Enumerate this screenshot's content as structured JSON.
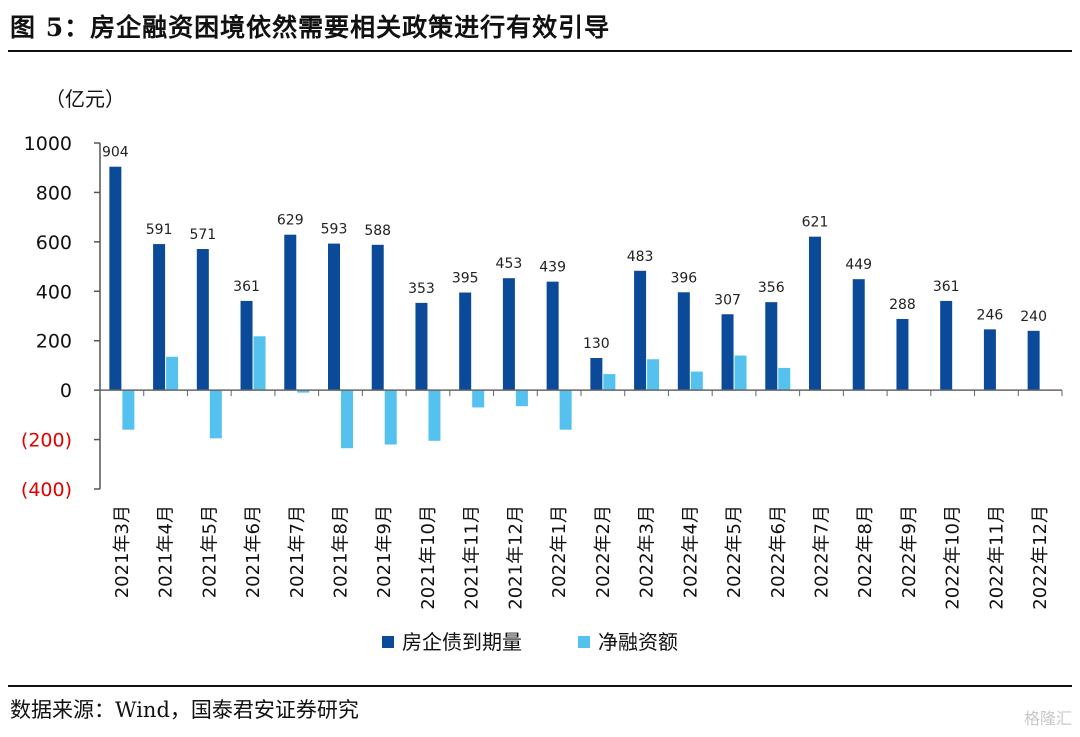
{
  "figure": {
    "title": "图 5：房企融资困境依然需要相关政策进行有效引导",
    "source": "数据来源：Wind，国泰君安证券研究",
    "watermark": "格隆汇"
  },
  "chart_data": {
    "type": "bar",
    "unit": "（亿元）",
    "categories": [
      "2021年3月",
      "2021年4月",
      "2021年5月",
      "2021年6月",
      "2021年7月",
      "2021年8月",
      "2021年9月",
      "2021年10月",
      "2021年11月",
      "2021年12月",
      "2022年1月",
      "2022年2月",
      "2022年3月",
      "2022年4月",
      "2022年5月",
      "2022年6月",
      "2022年7月",
      "2022年8月",
      "2022年9月",
      "2022年10月",
      "2022年11月",
      "2022年12月"
    ],
    "series": [
      {
        "name": "房企债到期量",
        "color": "#0b4a99",
        "values": [
          904,
          591,
          571,
          361,
          629,
          593,
          588,
          353,
          395,
          453,
          439,
          130,
          483,
          396,
          307,
          356,
          621,
          449,
          288,
          361,
          246,
          240
        ],
        "show_labels": true
      },
      {
        "name": "净融资额",
        "color": "#55c1ee",
        "values": [
          -160,
          135,
          -195,
          218,
          -10,
          -235,
          -220,
          -205,
          -70,
          -65,
          -160,
          65,
          125,
          75,
          140,
          90,
          null,
          null,
          null,
          null,
          null,
          null
        ],
        "show_labels": false
      }
    ],
    "ylim": [
      -400,
      1000
    ],
    "yticks": [
      {
        "value": 1000,
        "label": "1000",
        "color": "#111111"
      },
      {
        "value": 800,
        "label": "800",
        "color": "#111111"
      },
      {
        "value": 600,
        "label": "600",
        "color": "#111111"
      },
      {
        "value": 400,
        "label": "400",
        "color": "#111111"
      },
      {
        "value": 200,
        "label": "200",
        "color": "#111111"
      },
      {
        "value": 0,
        "label": "0",
        "color": "#111111"
      },
      {
        "value": -200,
        "label": "(200)",
        "color": "#e00000"
      },
      {
        "value": -400,
        "label": "(400)",
        "color": "#e00000"
      }
    ],
    "legend": "bottom-center",
    "grid": false
  }
}
